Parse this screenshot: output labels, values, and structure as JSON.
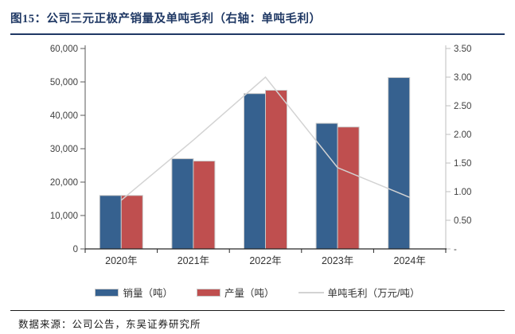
{
  "figure": {
    "title": "图15：公司三元正极产销量及单吨毛利（右轴：单吨毛利）",
    "source": "数据来源：公司公告，东吴证券研究所",
    "title_color": "#1F3864"
  },
  "chart_data": {
    "type": "bar",
    "subtype": "combo_bar_line_dual_axis",
    "categories": [
      "2020年",
      "2021年",
      "2022年",
      "2023年",
      "2024年"
    ],
    "series": [
      {
        "name": "销量（吨）",
        "render": "bar",
        "axis": "left",
        "color": "#36618F",
        "values": [
          16000,
          27000,
          46500,
          37600,
          51300
        ]
      },
      {
        "name": "产量（吨）",
        "render": "bar",
        "axis": "left",
        "color": "#BF4F4F",
        "values": [
          16000,
          26300,
          47500,
          36500,
          null
        ]
      },
      {
        "name": "单吨毛利（万元/吨）",
        "render": "line",
        "axis": "right",
        "color": "#D3D3D3",
        "values": [
          0.85,
          1.9,
          3.0,
          1.42,
          0.9
        ]
      }
    ],
    "left_axis": {
      "min": 0,
      "max": 60000,
      "step": 10000,
      "tick_labels": [
        "0",
        "10,000",
        "20,000",
        "30,000",
        "40,000",
        "50,000",
        "60,000"
      ]
    },
    "right_axis": {
      "min": 0,
      "max": 3.5,
      "step": 0.5,
      "zero_label": "-",
      "tick_labels": [
        "-",
        "0.50",
        "1.00",
        "1.50",
        "2.00",
        "2.50",
        "3.00",
        "3.50"
      ]
    },
    "grid": false,
    "legend_position": "bottom",
    "bar_border_color": "#C9C9C9",
    "axis_colors": {
      "left": "#595959",
      "right": "#BFBFBF",
      "bottom": "#262626",
      "tick_text": "#404040"
    }
  }
}
